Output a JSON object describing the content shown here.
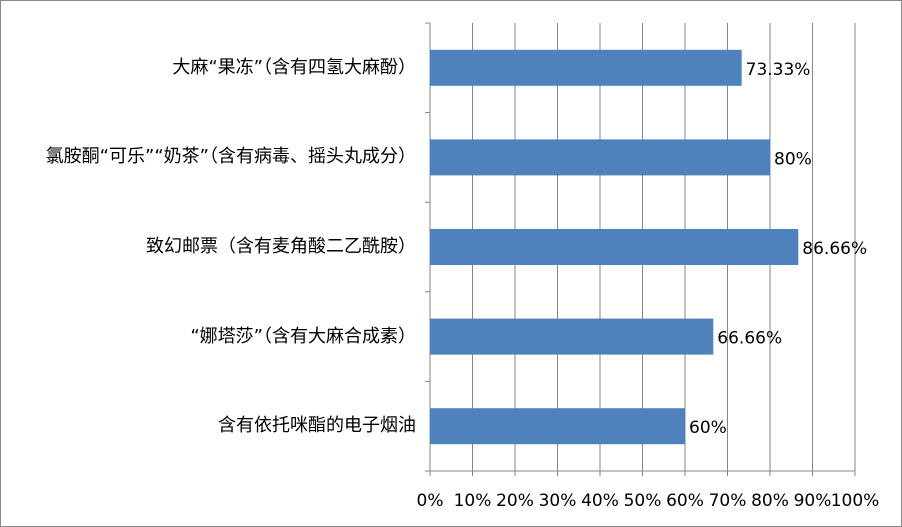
{
  "chart_data": {
    "type": "bar",
    "orientation": "horizontal",
    "categories": [
      "大麻“果冻”（含有四氢大麻酚）",
      "氯胺酮“可乐”“奶茶”（含有病毒、摇头丸成分）",
      "致幻邮票（含有麦角酸二乙酰胺）",
      "“娜塔莎”（含有大麻合成素）",
      "含有依托咪酯的电子烟油"
    ],
    "values": [
      73.33,
      80,
      86.66,
      66.66,
      60
    ],
    "value_labels": [
      "73.33%",
      "80%",
      "86.66%",
      "66.66%",
      "60%"
    ],
    "color": "#4f81bd",
    "xlim": [
      0,
      100
    ],
    "xticks": [
      {
        "value": 0,
        "label": "0%"
      },
      {
        "value": 10,
        "label": "10%"
      },
      {
        "value": 20,
        "label": "20%"
      },
      {
        "value": 30,
        "label": "30%"
      },
      {
        "value": 40,
        "label": "40%"
      },
      {
        "value": 50,
        "label": "50%"
      },
      {
        "value": 60,
        "label": "60%"
      },
      {
        "value": 70,
        "label": "70%"
      },
      {
        "value": 80,
        "label": "80%"
      },
      {
        "value": 90,
        "label": "90%"
      },
      {
        "value": 100,
        "label": "100%"
      }
    ],
    "grid": true
  }
}
